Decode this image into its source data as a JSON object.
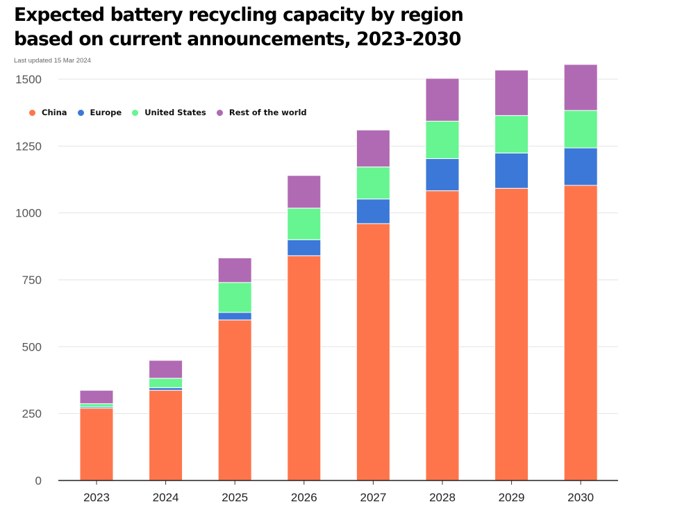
{
  "header": {
    "title": "Expected battery recycling capacity by region based on current announcements, 2023-2030",
    "updated": "Last updated 15 Mar 2024"
  },
  "legend": [
    {
      "label": "China",
      "color": "#ff754b"
    },
    {
      "label": "Europe",
      "color": "#3c78d8"
    },
    {
      "label": "United States",
      "color": "#66f591"
    },
    {
      "label": "Rest of the world",
      "color": "#b06ab3"
    }
  ],
  "chart_data": {
    "type": "bar",
    "stacked": true,
    "title": "Expected battery recycling capacity by region based on current announcements, 2023-2030",
    "xlabel": "",
    "ylabel": "",
    "ylim": [
      0,
      1500
    ],
    "yticks": [
      0,
      250,
      500,
      750,
      1000,
      1250,
      1500
    ],
    "grid": true,
    "legend_position": "top-left",
    "categories": [
      "2023",
      "2024",
      "2025",
      "2026",
      "2027",
      "2028",
      "2029",
      "2030"
    ],
    "series": [
      {
        "name": "China",
        "color": "#ff754b",
        "values": [
          270,
          337,
          600,
          840,
          960,
          1083,
          1092,
          1103
        ]
      },
      {
        "name": "Europe",
        "color": "#3c78d8",
        "values": [
          5,
          10,
          28,
          60,
          92,
          120,
          132,
          140
        ]
      },
      {
        "name": "United States",
        "color": "#66f591",
        "values": [
          12,
          35,
          112,
          118,
          120,
          140,
          140,
          140
        ]
      },
      {
        "name": "Rest of the world",
        "color": "#b06ab3",
        "values": [
          50,
          67,
          92,
          122,
          138,
          160,
          170,
          172
        ]
      }
    ]
  }
}
